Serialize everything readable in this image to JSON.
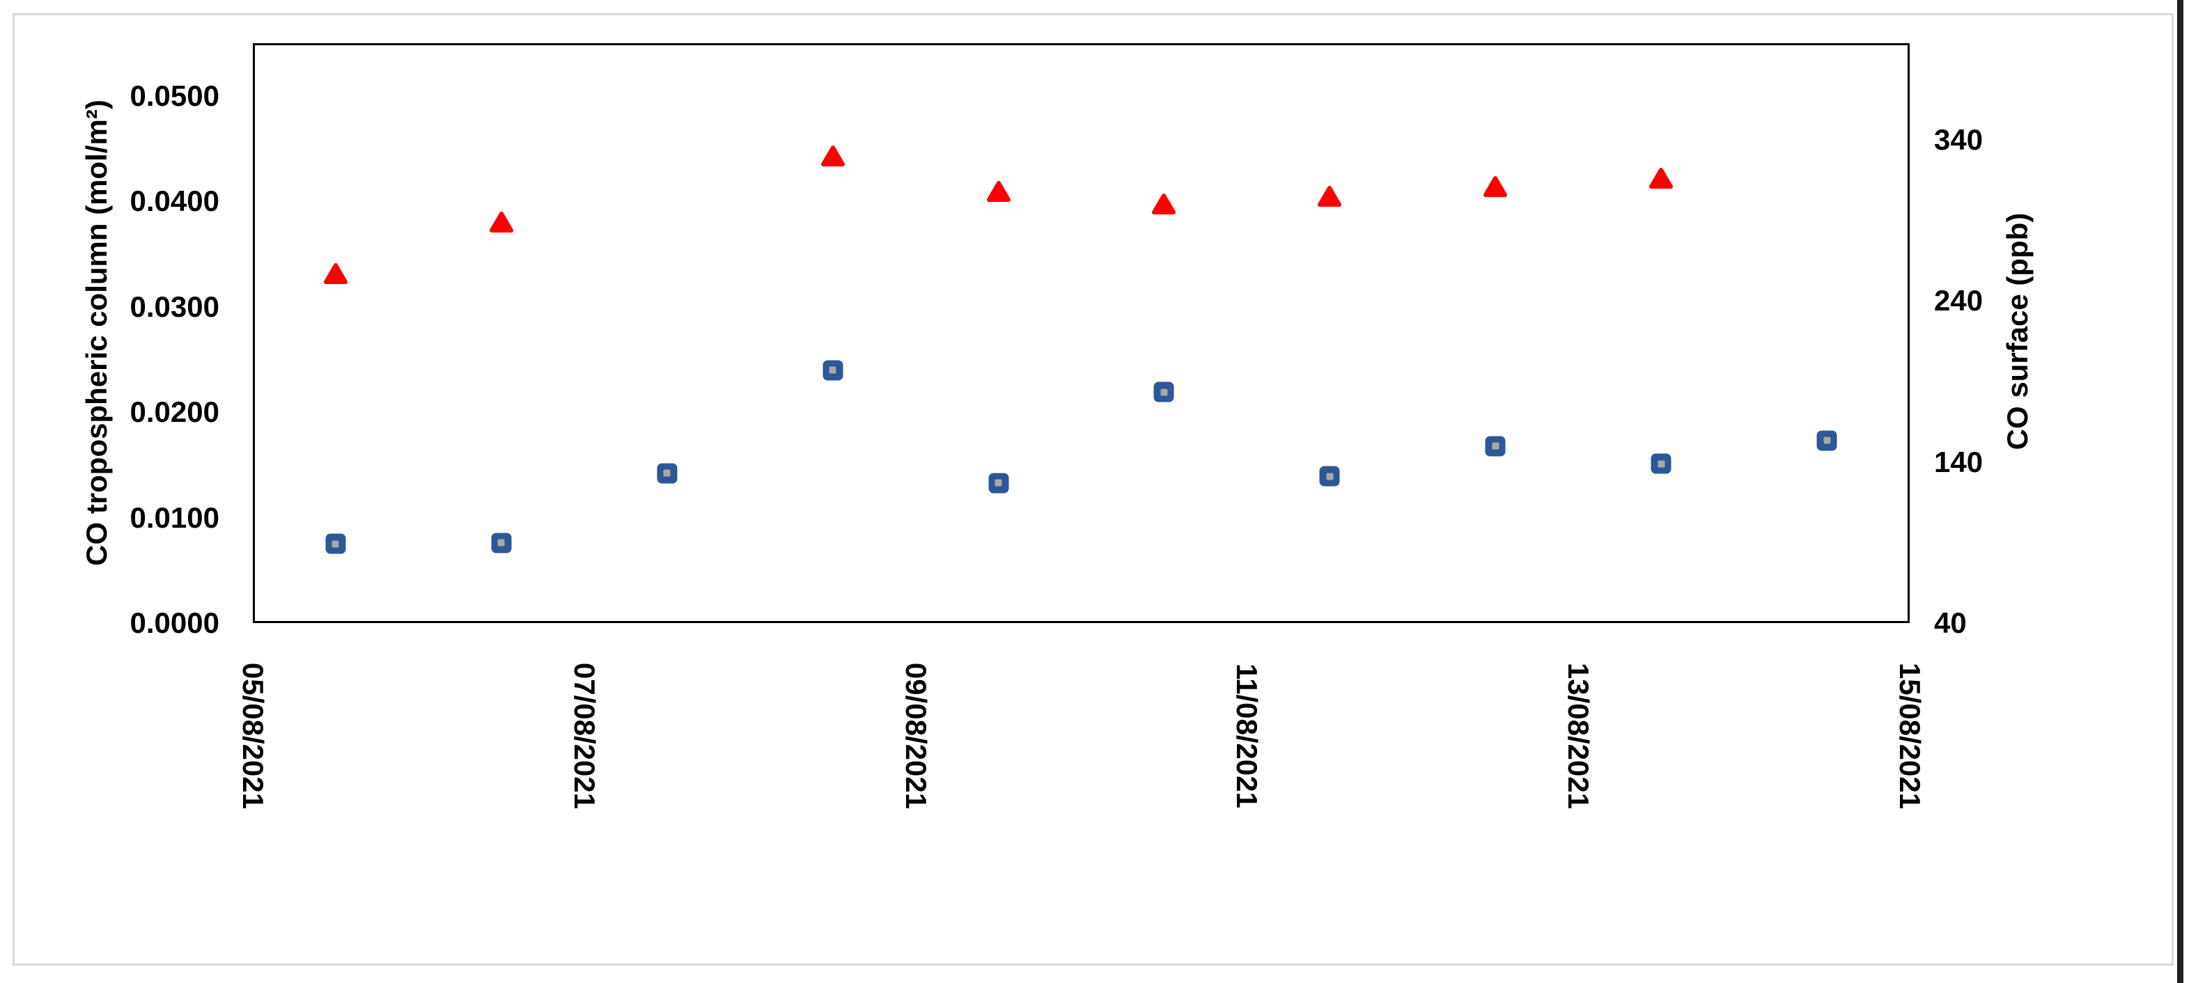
{
  "chart_data": {
    "type": "scatter",
    "title": "",
    "grid": false,
    "legend": false,
    "x_tick_labels": [
      "05/08/2021",
      "07/08/2021",
      "09/08/2021",
      "11/08/2021",
      "13/08/2021",
      "15/08/2021"
    ],
    "point_dates": [
      "05/08/2021",
      "06/08/2021",
      "07/08/2021",
      "08/08/2021",
      "09/08/2021",
      "10/08/2021",
      "11/08/2021",
      "12/08/2021",
      "13/08/2021",
      "14/08/2021"
    ],
    "left_axis": {
      "label": "CO tropospheric column (mol/m²)",
      "min": 0,
      "max": 0.055,
      "tick_labels": [
        "0.0000",
        "0.0100",
        "0.0200",
        "0.0300",
        "0.0400",
        "0.0500"
      ]
    },
    "right_axis": {
      "label": "CO surface (ppb)",
      "min": 40,
      "max": 400,
      "tick_labels": [
        "40",
        "140",
        "240",
        "340"
      ]
    },
    "series": [
      {
        "name": "CO tropospheric column (mol/m²)",
        "axis": "left",
        "marker": "square",
        "color": "#2E5797",
        "marker_inner_color": "#A8A8A8",
        "values": [
          0.0075,
          0.0076,
          0.0142,
          0.024,
          0.0133,
          0.0219,
          0.0139,
          0.0168,
          0.0151,
          0.0173
        ]
      },
      {
        "name": "CO surface (ppb)",
        "axis": "right",
        "marker": "triangle",
        "color": "#FF0000",
        "values": [
          257,
          289,
          null,
          330,
          308,
          300,
          305,
          311,
          316,
          null
        ]
      }
    ]
  }
}
